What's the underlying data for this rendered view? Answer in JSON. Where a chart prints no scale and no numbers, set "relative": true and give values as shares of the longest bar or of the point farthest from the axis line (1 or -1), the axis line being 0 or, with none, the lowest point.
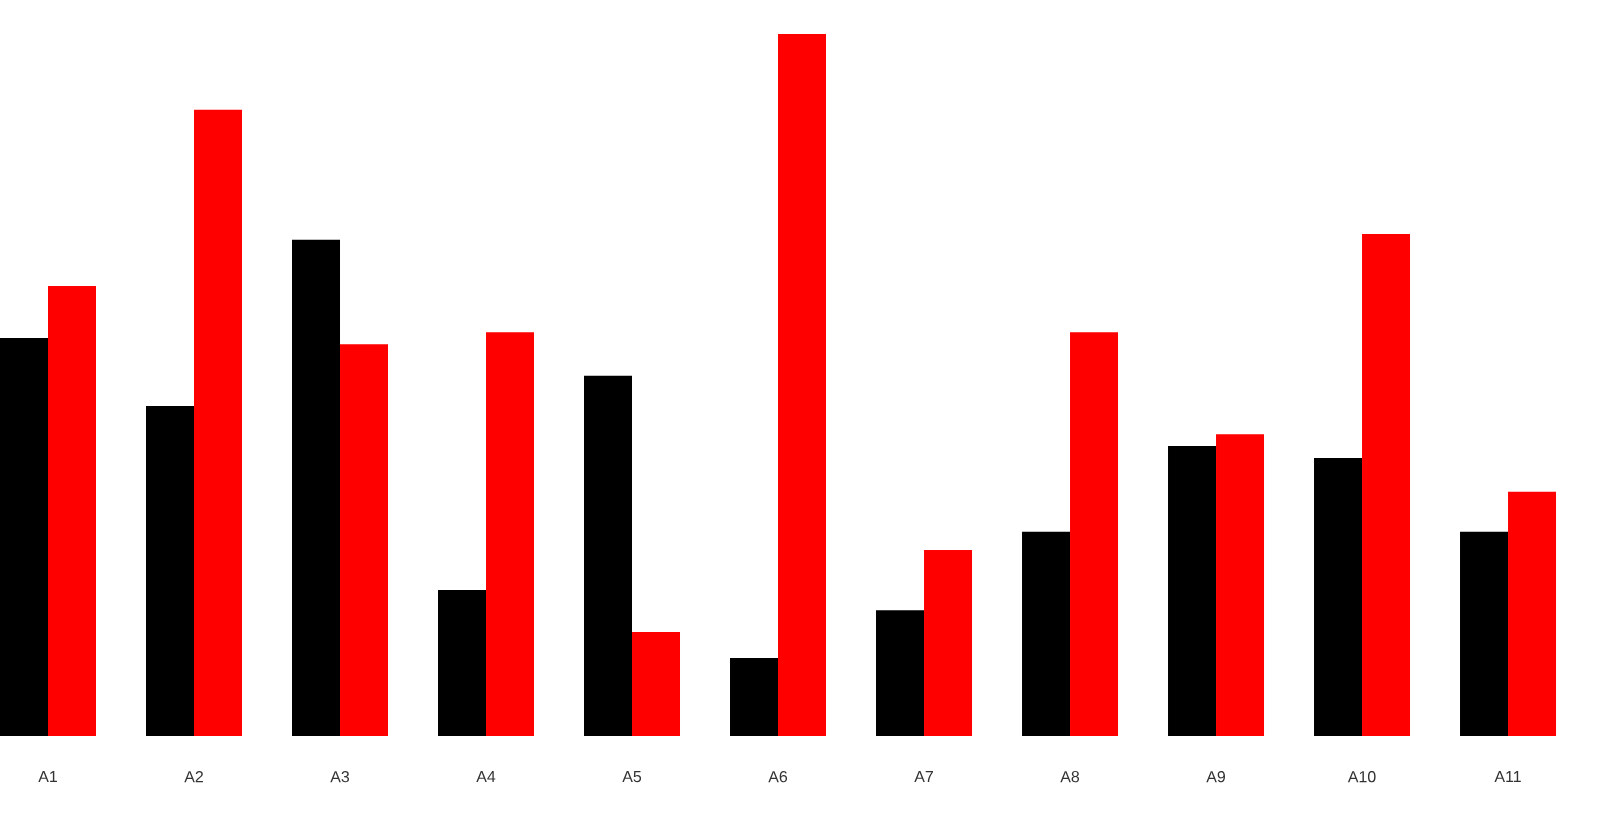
{
  "chart_data": {
    "type": "bar",
    "relative": true,
    "categories": [
      "A1",
      "A2",
      "A3",
      "A4",
      "A5",
      "A6",
      "A7",
      "A8",
      "A9",
      "A10",
      "A11"
    ],
    "series": [
      {
        "color": "#000000",
        "values": [
          0.567,
          0.47,
          0.707,
          0.208,
          0.513,
          0.111,
          0.179,
          0.291,
          0.413,
          0.396,
          0.291
        ]
      },
      {
        "color": "#ff0000",
        "values": [
          0.641,
          0.892,
          0.558,
          0.575,
          0.148,
          1,
          0.265,
          0.575,
          0.43,
          0.715,
          0.348
        ]
      }
    ]
  }
}
